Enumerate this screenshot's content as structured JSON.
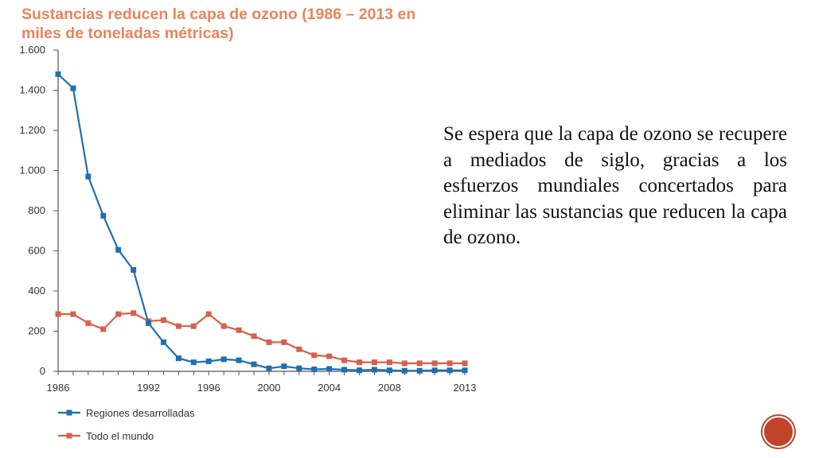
{
  "slide": {
    "text": "Se espera que la capa de ozono se recupere a mediados de siglo, gracias a los esfuerzos mundiales concertados para eliminar las sustancias que reducen la capa de ozono.",
    "badge_label": "",
    "badge_color": "#c0432a"
  },
  "chart_data": {
    "type": "line",
    "title": "Sustancias reducen la capa de ozono (1986 – 2013 en miles de toneladas métricas)",
    "xlabel": "",
    "ylabel": "",
    "x": [
      1986,
      1987,
      1988,
      1989,
      1990,
      1991,
      1992,
      1993,
      1994,
      1995,
      1996,
      1997,
      1998,
      1999,
      2000,
      2001,
      2002,
      2003,
      2004,
      2005,
      2006,
      2007,
      2008,
      2009,
      2010,
      2011,
      2012,
      2013
    ],
    "xlim": [
      1986,
      2013
    ],
    "ylim": [
      0,
      1600
    ],
    "x_ticks": [
      1986,
      1992,
      1996,
      2000,
      2004,
      2008,
      2013
    ],
    "x_tick_labels": [
      "1986",
      "1992",
      "1996",
      "2000",
      "2004",
      "2008",
      "2013"
    ],
    "y_ticks": [
      0,
      200,
      400,
      600,
      800,
      1000,
      1200,
      1400,
      1600
    ],
    "y_tick_labels": [
      "0",
      "200",
      "400",
      "600",
      "800",
      "1.000",
      "1.200",
      "1.400",
      "1.600"
    ],
    "grid": false,
    "legend_position": "bottom-left",
    "title_color": "#e8845c",
    "series": [
      {
        "name": "Regiones desarrolladas",
        "color": "#1f6fb2",
        "values": [
          1480,
          1410,
          970,
          775,
          605,
          505,
          240,
          145,
          65,
          45,
          50,
          60,
          55,
          35,
          15,
          25,
          15,
          10,
          12,
          8,
          5,
          8,
          5,
          3,
          3,
          5,
          5,
          5
        ]
      },
      {
        "name": "Todo el mundo",
        "color": "#d9604a",
        "values": [
          285,
          285,
          240,
          210,
          285,
          290,
          250,
          255,
          225,
          225,
          285,
          225,
          205,
          175,
          145,
          145,
          110,
          80,
          75,
          55,
          45,
          45,
          45,
          40,
          40,
          40,
          40,
          40
        ]
      }
    ]
  }
}
